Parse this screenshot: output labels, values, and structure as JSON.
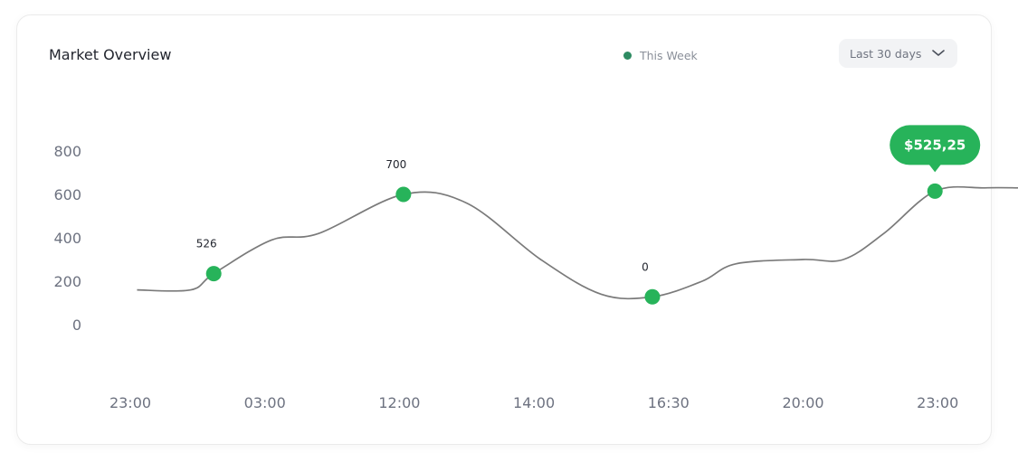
{
  "header": {
    "title": "Market Overview",
    "range_select": {
      "value": "Last 30 days"
    }
  },
  "icons": {
    "dropdown": "chevron-down-icon"
  },
  "colors": {
    "accent": "#27b35a",
    "line": "#7a7a7a",
    "legend_dot": "#2e8b62"
  },
  "chart_data": {
    "type": "line",
    "title": "Market Overview",
    "legend": {
      "entries": [
        "This Week"
      ],
      "placement": "top-center"
    },
    "grid": false,
    "x_categories": [
      "23:00",
      "03:00",
      "12:00",
      "14:00",
      "16:30",
      "20:00",
      "23:00"
    ],
    "y_ticks": [
      800,
      600,
      400,
      200,
      0
    ],
    "ylim": [
      0,
      800
    ],
    "series": [
      {
        "name": "This Week",
        "points": [
          {
            "x": 0.05,
            "y": 160
          },
          {
            "x": 0.45,
            "y": 160
          },
          {
            "x": 0.62,
            "y": 235
          },
          {
            "x": 1.05,
            "y": 390
          },
          {
            "x": 1.4,
            "y": 420
          },
          {
            "x": 2.03,
            "y": 600
          },
          {
            "x": 2.5,
            "y": 560
          },
          {
            "x": 3.05,
            "y": 300
          },
          {
            "x": 3.5,
            "y": 140
          },
          {
            "x": 3.88,
            "y": 128
          },
          {
            "x": 4.25,
            "y": 200
          },
          {
            "x": 4.5,
            "y": 280
          },
          {
            "x": 5.0,
            "y": 300
          },
          {
            "x": 5.3,
            "y": 300
          },
          {
            "x": 5.6,
            "y": 420
          },
          {
            "x": 5.98,
            "y": 615
          },
          {
            "x": 6.35,
            "y": 630
          },
          {
            "x": 6.6,
            "y": 630
          }
        ],
        "markers": [
          {
            "x": 0.62,
            "y": 235,
            "label": "526"
          },
          {
            "x": 2.03,
            "y": 600,
            "label": "700"
          },
          {
            "x": 3.88,
            "y": 128,
            "label": "0"
          },
          {
            "x": 5.98,
            "y": 615,
            "label": ""
          }
        ]
      }
    ],
    "tooltip": {
      "x": 5.98,
      "y": 615,
      "text": "$525,25"
    }
  }
}
